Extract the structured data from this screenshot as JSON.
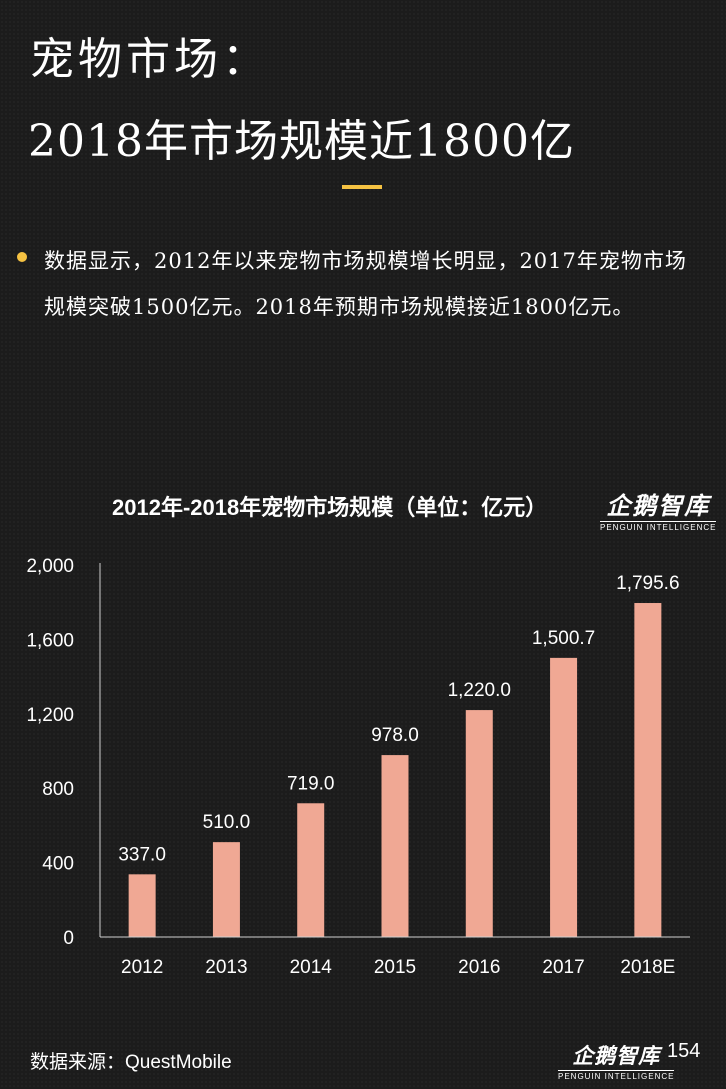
{
  "header": {
    "title_line1": "宠物市场：",
    "title_line2": "2018年市场规模近1800亿"
  },
  "bullet": {
    "text": "数据显示，2012年以来宠物市场规模增长明显，2017年宠物市场规模突破1500亿元。2018年预期市场规模接近1800亿元。"
  },
  "logo": {
    "name": "企鹅智库",
    "subtitle": "PENGUIN INTELLIGENCE"
  },
  "footer": {
    "source": "数据来源：QuestMobile",
    "page_number": "154"
  },
  "colors": {
    "accent": "#f5c242",
    "bar": "#f0a894",
    "background": "#1c1c1c"
  },
  "chart_data": {
    "type": "bar",
    "title": "2012年-2018年宠物市场规模（单位：亿元）",
    "categories": [
      "2012",
      "2013",
      "2014",
      "2015",
      "2016",
      "2017",
      "2018E"
    ],
    "values": [
      337.0,
      510.0,
      719.0,
      978.0,
      1220.0,
      1500.7,
      1795.6
    ],
    "value_labels": [
      "337.0",
      "510.0",
      "719.0",
      "978.0",
      "1,220.0",
      "1,500.7",
      "1,795.6"
    ],
    "y_ticks": [
      "0",
      "400",
      "800",
      "1,200",
      "1,600",
      "2,000"
    ],
    "ylim": [
      0,
      2000
    ],
    "grid": false,
    "legend": "none"
  }
}
